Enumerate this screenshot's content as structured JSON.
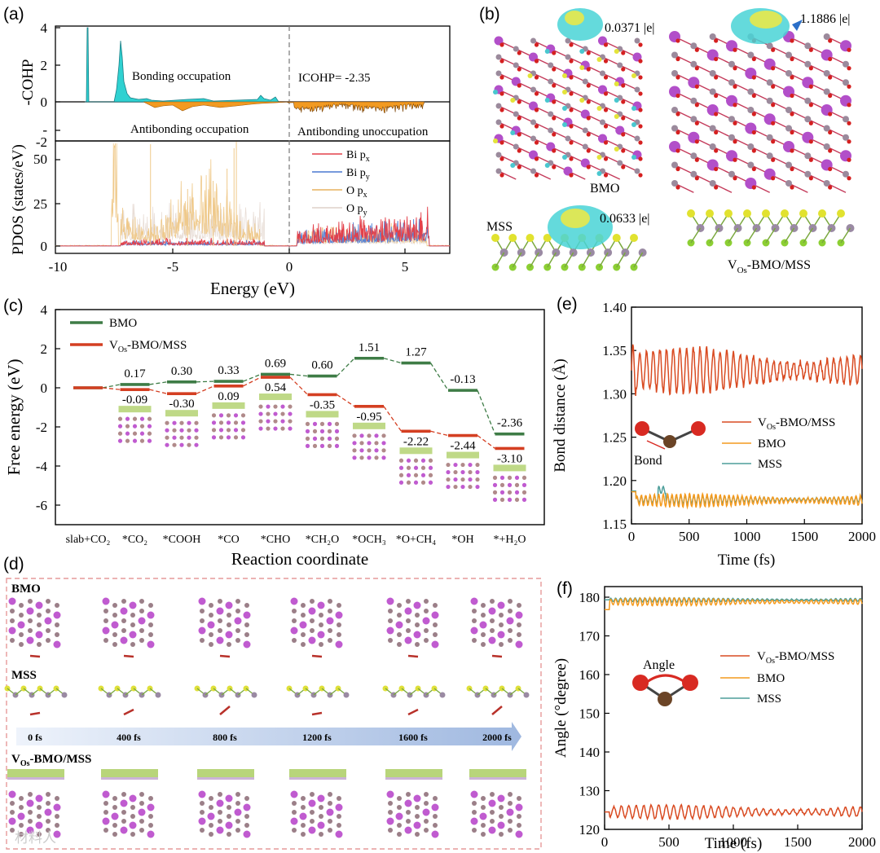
{
  "panels": {
    "a": "(a)",
    "b": "(b)",
    "c": "(c)",
    "d": "(d)",
    "e": "(e)",
    "f": "(f)"
  },
  "panel_a": {
    "cohp_ylabel": "-COHP",
    "pdos_ylabel": "PDOS (states/eV)",
    "xlabel": "Energy (eV)",
    "cohp_yticks": [
      "4",
      "2",
      "0",
      "-"
    ],
    "cohp_bottom_tick": "-2",
    "pdos_yticks": [
      "50",
      "25",
      "0"
    ],
    "xticks": [
      "-10",
      "-5",
      "0",
      "5"
    ],
    "bonding": "Bonding occupation",
    "antibonding": "Antibonding occupation",
    "antibonding_un": "Antibonding unoccupation",
    "icohp": "ICOHP= -2.35",
    "legend": [
      {
        "base": "Bi p",
        "sub": "x",
        "color": "#e3404a"
      },
      {
        "base": "Bi p",
        "sub": "y",
        "color": "#4a78d0"
      },
      {
        "base": "O p",
        "sub": "x",
        "color": "#e7b25f"
      },
      {
        "base": "O p",
        "sub": "y",
        "color": "#ddd0c8"
      }
    ]
  },
  "panel_b": {
    "charge_bmo": "0.0371 |e|",
    "charge_vos": "1.1886 |e|",
    "charge_mss": "0.0633 |e|",
    "label_bmo": "BMO",
    "label_mss": "MSS",
    "label_vos_base": "V",
    "label_vos_sub": "Os",
    "label_vos_rest": "-BMO/MSS"
  },
  "chart_data": [
    {
      "type": "bar",
      "panel": "c",
      "xlabel": "Reaction coordinate",
      "ylabel": "Free energy (eV)",
      "ylim": [
        -7,
        4
      ],
      "yticks": [
        "4",
        "2",
        "0",
        "-2",
        "-4",
        "-6"
      ],
      "categories": [
        "slab+CO₂",
        "*CO₂",
        "*COOH",
        "*CO",
        "*CHO",
        "*CH₂O",
        "*OCH₃",
        "*O+CH₄",
        "*OH",
        "*+H₂O"
      ],
      "series": [
        {
          "name": "BMO",
          "color": "#3e7c46",
          "values": [
            0,
            0.17,
            0.3,
            0.33,
            0.69,
            0.6,
            1.51,
            1.27,
            -0.13,
            -2.36
          ],
          "labels": [
            "",
            "0.17",
            "0.30",
            "0.33",
            "0.69",
            "0.60",
            "1.51",
            "1.27",
            "-0.13",
            "-2.36"
          ]
        },
        {
          "name": "V_Os-BMO/MSS",
          "color": "#d43f22",
          "values": [
            0,
            -0.09,
            -0.3,
            0.09,
            0.54,
            -0.35,
            -0.95,
            -2.22,
            -2.44,
            -3.1
          ],
          "labels": [
            "",
            "-0.09",
            "-0.30",
            "0.09",
            "0.54",
            "-0.35",
            "-0.95",
            "-2.22",
            "-2.44",
            "-3.10"
          ]
        }
      ],
      "legend_bmo": "BMO",
      "legend_vos_base": "V",
      "legend_vos_sub": "Os",
      "legend_vos_rest": "-BMO/MSS"
    },
    {
      "type": "line",
      "panel": "e",
      "xlabel": "Time (fs)",
      "ylabel": "Bond distance (Å)",
      "xlim": [
        0,
        2000
      ],
      "ylim": [
        1.15,
        1.4
      ],
      "xticks": [
        "0",
        "500",
        "1000",
        "1500",
        "2000"
      ],
      "yticks": [
        "1.40",
        "1.35",
        "1.30",
        "1.25",
        "1.20",
        "1.15"
      ],
      "series": [
        {
          "name": "V_Os-BMO/MSS",
          "color": "#d94b22",
          "mean": 1.327,
          "amp": 0.024
        },
        {
          "name": "BMO",
          "color": "#f49a1e",
          "mean": 1.177,
          "amp": 0.007
        },
        {
          "name": "MSS",
          "color": "#4d9e9a",
          "mean": 1.178,
          "amp": 0.004
        }
      ],
      "inset_label": "Bond"
    },
    {
      "type": "line",
      "panel": "f",
      "xlabel": "Time (fs)",
      "ylabel": "Angle (°degree)",
      "xlim": [
        0,
        2000
      ],
      "ylim": [
        120,
        180
      ],
      "xticks": [
        "0",
        "500",
        "1000",
        "1500",
        "2000"
      ],
      "yticks": [
        "180",
        "170",
        "160",
        "150",
        "140",
        "130",
        "120"
      ],
      "series": [
        {
          "name": "V_Os-BMO/MSS",
          "color": "#d94b22",
          "mean": 124.5,
          "amp": 1.6
        },
        {
          "name": "BMO",
          "color": "#f49a1e",
          "mean": 178.8,
          "amp": 0.9
        },
        {
          "name": "MSS",
          "color": "#4d9e9a",
          "mean": 179.3,
          "amp": 0.5
        }
      ],
      "inset_label": "Angle"
    }
  ],
  "legend_e": {
    "vos_base": "V",
    "vos_sub": "Os",
    "vos_rest": "-BMO/MSS",
    "bmo": "BMO",
    "mss": "MSS"
  },
  "panel_d": {
    "row1": "BMO",
    "row2": "MSS",
    "row3_base": "V",
    "row3_sub": "Os",
    "row3_rest": "-BMO/MSS",
    "times": [
      "0 fs",
      "400 fs",
      "800 fs",
      "1200 fs",
      "1600 fs",
      "2000 fs"
    ]
  },
  "watermark": "材料人"
}
